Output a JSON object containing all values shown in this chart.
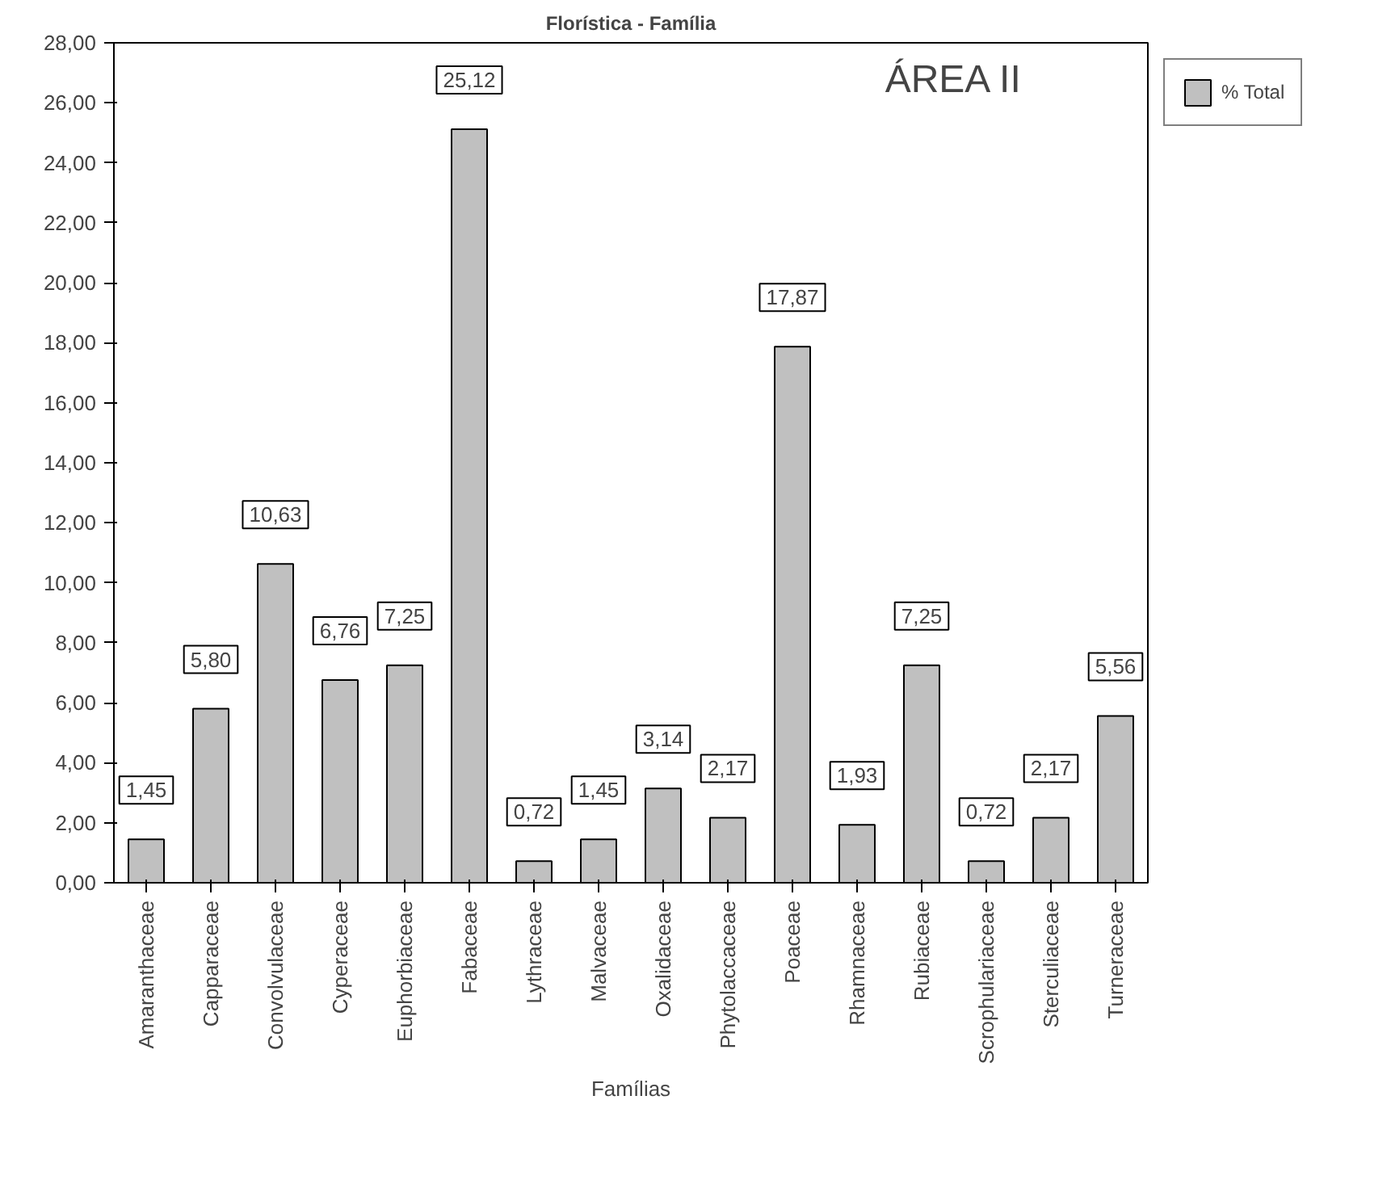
{
  "chart_data": {
    "type": "bar",
    "title": "Florística - Família",
    "xlabel": "Famílias",
    "categories": [
      "Amaranthaceae",
      "Capparaceae",
      "Convolvulaceae",
      "Cyperaceae",
      "Euphorbiaceae",
      "Fabaceae",
      "Lythraceae",
      "Malvaceae",
      "Oxalidaceae",
      "Phytolaccaceae",
      "Poaceae",
      "Rhamnaceae",
      "Rubiaceae",
      "Scrophulariaceae",
      "Sterculiaceae",
      "Turneraceae"
    ],
    "series": [
      {
        "name": "% Total",
        "color": "#c0c0c0",
        "values": [
          1.45,
          5.8,
          10.63,
          6.76,
          7.25,
          25.12,
          0.72,
          1.45,
          3.14,
          2.17,
          17.87,
          1.93,
          7.25,
          0.72,
          2.17,
          5.56
        ],
        "value_labels": [
          "1,45",
          "5,80",
          "10,63",
          "6,76",
          "7,25",
          "25,12",
          "0,72",
          "1,45",
          "3,14",
          "2,17",
          "17,87",
          "1,93",
          "7,25",
          "0,72",
          "2,17",
          "5,56"
        ]
      }
    ],
    "ylim": [
      0,
      28
    ],
    "yticks": [
      {
        "value": 0,
        "label": "0,00"
      },
      {
        "value": 2,
        "label": "2,00"
      },
      {
        "value": 4,
        "label": "4,00"
      },
      {
        "value": 6,
        "label": "6,00"
      },
      {
        "value": 8,
        "label": "8,00"
      },
      {
        "value": 10,
        "label": "10,00"
      },
      {
        "value": 12,
        "label": "12,00"
      },
      {
        "value": 14,
        "label": "14,00"
      },
      {
        "value": 16,
        "label": "16,00"
      },
      {
        "value": 18,
        "label": "18,00"
      },
      {
        "value": 20,
        "label": "20,00"
      },
      {
        "value": 22,
        "label": "22,00"
      },
      {
        "value": 24,
        "label": "24,00"
      },
      {
        "value": 26,
        "label": "26,00"
      },
      {
        "value": 28,
        "label": "28,00"
      }
    ],
    "annotations": [
      "ÁREA II"
    ],
    "legend": "top right",
    "grid": false
  }
}
